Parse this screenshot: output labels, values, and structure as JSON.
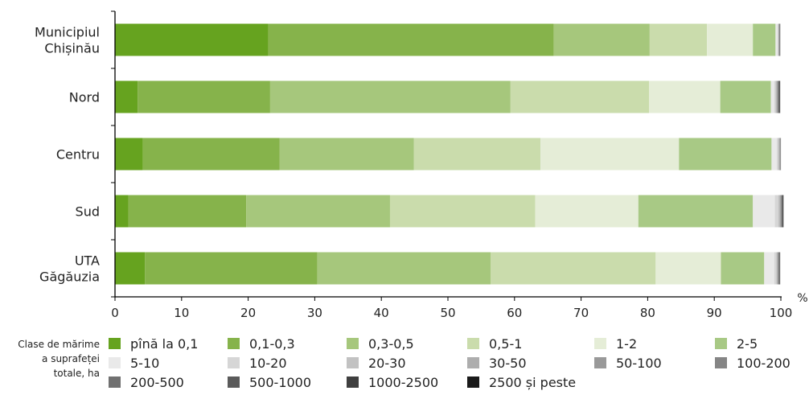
{
  "chart_data": {
    "type": "bar",
    "orientation": "horizontal",
    "stacked": true,
    "categories": [
      [
        "Municipiul",
        "Chișinău"
      ],
      [
        "Nord"
      ],
      [
        "Centru"
      ],
      [
        "Sud"
      ],
      [
        "UTA",
        "Găgăuzia"
      ]
    ],
    "series": [
      {
        "name": "pînă la 0,1",
        "color": "#66a31f",
        "values": [
          23.0,
          3.4,
          4.2,
          2.0,
          4.5
        ]
      },
      {
        "name": "0,1-0,3",
        "color": "#86b34b",
        "values": [
          42.9,
          19.9,
          20.5,
          17.7,
          25.9
        ]
      },
      {
        "name": "0,3-0,5",
        "color": "#a6c77c",
        "values": [
          14.4,
          36.1,
          20.2,
          21.6,
          26.0
        ]
      },
      {
        "name": "0,5-1",
        "color": "#cadcac",
        "values": [
          8.6,
          20.8,
          19.0,
          21.8,
          24.8
        ]
      },
      {
        "name": "1-2",
        "color": "#e5edd7",
        "values": [
          6.9,
          10.7,
          20.8,
          15.5,
          9.8
        ]
      },
      {
        "name": "2-5",
        "color": "#a8c985",
        "values": [
          3.4,
          7.6,
          13.9,
          17.2,
          6.5
        ]
      },
      {
        "name": "5-10",
        "color": "#e9e9e9",
        "values": [
          0.3,
          0.5,
          0.8,
          3.3,
          1.5
        ]
      },
      {
        "name": "10-20",
        "color": "#d6d6d6",
        "values": [
          0.1,
          0.2,
          0.2,
          0.5,
          0.3
        ]
      },
      {
        "name": "20-30",
        "color": "#c2c2c2",
        "values": [
          0.05,
          0.1,
          0.1,
          0.2,
          0.1
        ]
      },
      {
        "name": "30-50",
        "color": "#adadad",
        "values": [
          0.05,
          0.1,
          0.1,
          0.1,
          0.1
        ]
      },
      {
        "name": "50-100",
        "color": "#999999",
        "values": [
          0.05,
          0.1,
          0.1,
          0.1,
          0.1
        ]
      },
      {
        "name": "100-200",
        "color": "#858585",
        "values": [
          0.05,
          0.1,
          0.05,
          0.1,
          0.1
        ]
      },
      {
        "name": "200-500",
        "color": "#707070",
        "values": [
          0.05,
          0.1,
          0.05,
          0.1,
          0.1
        ]
      },
      {
        "name": "500-1000",
        "color": "#5a5a5a",
        "values": [
          0.05,
          0.1,
          0.0,
          0.1,
          0.1
        ]
      },
      {
        "name": "1000-2500",
        "color": "#3f3f3f",
        "values": [
          0.0,
          0.1,
          0.0,
          0.1,
          0.0
        ]
      },
      {
        "name": "2500 și peste",
        "color": "#1a1a1a",
        "values": [
          0.0,
          0.0,
          0.0,
          0.0,
          0.0
        ]
      }
    ],
    "xlim": [
      0,
      100
    ],
    "xticks": [
      0,
      10,
      20,
      30,
      40,
      50,
      60,
      70,
      80,
      90,
      100
    ],
    "xunit": "%",
    "grid": false,
    "legend_title": [
      "Clase de mărime",
      "a suprafeței",
      "totale, ha"
    ],
    "legend_position": "bottom"
  }
}
